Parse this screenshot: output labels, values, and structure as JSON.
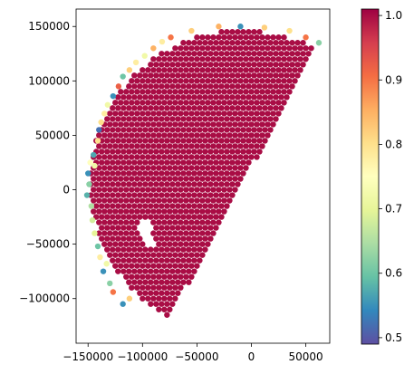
{
  "chart_data": {
    "type": "scatter",
    "title": "",
    "xlabel": "",
    "ylabel": "",
    "xlim": [
      -161000,
      72000
    ],
    "ylim": [
      -141000,
      166000
    ],
    "x_ticks": [
      -150000,
      -100000,
      -50000,
      0,
      50000
    ],
    "x_tick_labels": [
      "−150000",
      "−100000",
      "−50000",
      "0",
      "50000"
    ],
    "y_ticks": [
      -100000,
      -50000,
      0,
      50000,
      100000,
      150000
    ],
    "y_tick_labels": [
      "−100000",
      "−50000",
      "0",
      "50000",
      "100000",
      "150000"
    ],
    "grid": false,
    "legend": "none",
    "colormap": "Spectral_r",
    "colorbar": {
      "min": 0.49,
      "max": 1.01,
      "ticks": [
        0.5,
        0.6,
        0.7,
        0.8,
        0.9,
        1.0
      ],
      "tick_labels": [
        "0.5",
        "0.6",
        "0.7",
        "0.8",
        "0.9",
        "1.0"
      ],
      "stops": [
        "#5e4fa2",
        "#3288bd",
        "#66c2a5",
        "#abdda4",
        "#e6f598",
        "#ffffbf",
        "#fee08b",
        "#fdae61",
        "#f46d43",
        "#d53e4f",
        "#9e0142"
      ]
    },
    "interior_value": 1.0,
    "point_spacing": 5000,
    "region": {
      "description": "half-disk wedge of grid points",
      "lower_vertex": [
        -78000,
        -123000
      ],
      "upper_vertex": [
        62000,
        135000
      ],
      "arc_center": [
        -8000,
        6000
      ],
      "arc_radius": 145000,
      "holes": [
        [
          -97000,
          -35000
        ],
        [
          -94000,
          -48000
        ]
      ]
    },
    "edge_points": [
      {
        "x": -150000,
        "y": 15000,
        "v": 0.55
      },
      {
        "x": -151000,
        "y": -5000,
        "v": 0.58
      },
      {
        "x": -149000,
        "y": 5000,
        "v": 0.62
      },
      {
        "x": -148000,
        "y": 25000,
        "v": 0.75
      },
      {
        "x": -145000,
        "y": 32000,
        "v": 0.57
      },
      {
        "x": -144000,
        "y": 22000,
        "v": 0.72
      },
      {
        "x": -147000,
        "y": -15000,
        "v": 0.65
      },
      {
        "x": -146000,
        "y": -28000,
        "v": 0.68
      },
      {
        "x": -144000,
        "y": -40000,
        "v": 0.7
      },
      {
        "x": -141000,
        "y": -52000,
        "v": 0.6
      },
      {
        "x": -139000,
        "y": -62000,
        "v": 0.78
      },
      {
        "x": -136000,
        "y": -75000,
        "v": 0.55
      },
      {
        "x": -133000,
        "y": -68000,
        "v": 0.72
      },
      {
        "x": -130000,
        "y": -86000,
        "v": 0.62
      },
      {
        "x": -127000,
        "y": -94000,
        "v": 0.9
      },
      {
        "x": -118000,
        "y": -105000,
        "v": 0.55
      },
      {
        "x": -112000,
        "y": -100000,
        "v": 0.82
      },
      {
        "x": -140000,
        "y": 55000,
        "v": 0.52
      },
      {
        "x": -141000,
        "y": 45000,
        "v": 0.8
      },
      {
        "x": -138000,
        "y": 62000,
        "v": 0.8
      },
      {
        "x": -135000,
        "y": 70000,
        "v": 0.78
      },
      {
        "x": -132000,
        "y": 78000,
        "v": 0.72
      },
      {
        "x": -127000,
        "y": 86000,
        "v": 0.55
      },
      {
        "x": -122000,
        "y": 95000,
        "v": 0.92
      },
      {
        "x": -118000,
        "y": 104000,
        "v": 0.6
      },
      {
        "x": -112000,
        "y": 110000,
        "v": 0.82
      },
      {
        "x": -106000,
        "y": 117000,
        "v": 0.78
      },
      {
        "x": -98000,
        "y": 123000,
        "v": 0.72
      },
      {
        "x": -90000,
        "y": 130000,
        "v": 0.85
      },
      {
        "x": -82000,
        "y": 136000,
        "v": 0.78
      },
      {
        "x": -74000,
        "y": 140000,
        "v": 0.9
      },
      {
        "x": -55000,
        "y": 146000,
        "v": 0.82
      },
      {
        "x": -30000,
        "y": 150000,
        "v": 0.85
      },
      {
        "x": -10000,
        "y": 150000,
        "v": 0.55
      },
      {
        "x": 12000,
        "y": 149000,
        "v": 0.82
      },
      {
        "x": 35000,
        "y": 146000,
        "v": 0.8
      },
      {
        "x": 50000,
        "y": 140000,
        "v": 0.9
      },
      {
        "x": 62000,
        "y": 135000,
        "v": 0.62
      }
    ]
  }
}
